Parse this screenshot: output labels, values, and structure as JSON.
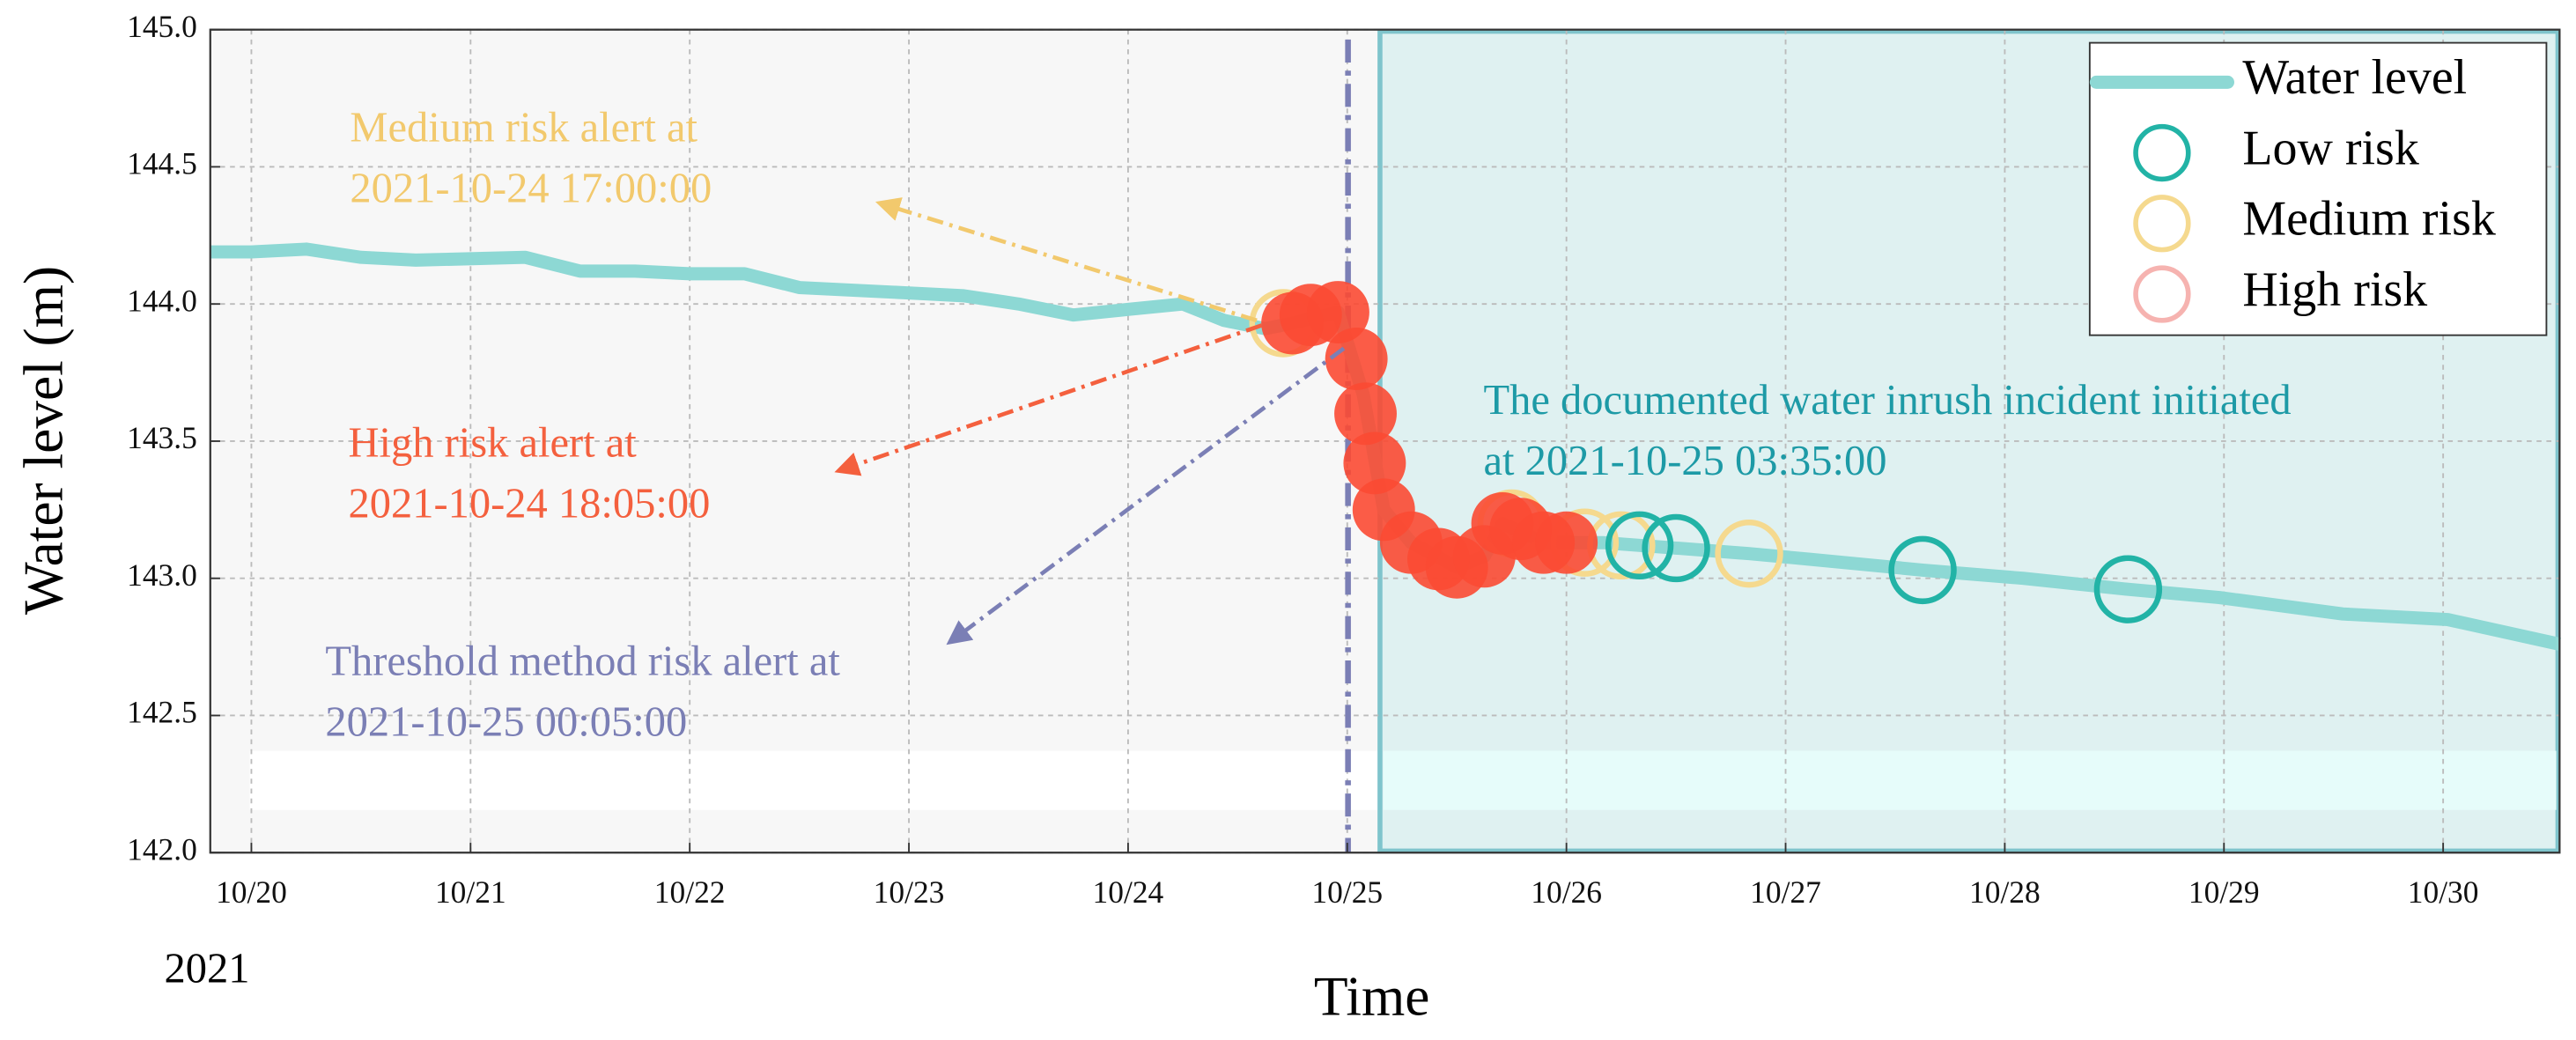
{
  "chart_data": {
    "type": "line",
    "xlabel": "Time",
    "ylabel": "Water level (m)",
    "x_year_label": "2021",
    "xlim": [
      "2021-10-19 19:30",
      "2021-10-30 12:45"
    ],
    "ylim": [
      142.0,
      145.0
    ],
    "xticks": [
      {
        "value": "2021-10-20 00:00",
        "label": "10/20"
      },
      {
        "value": "2021-10-21 00:00",
        "label": "10/21"
      },
      {
        "value": "2021-10-22 00:00",
        "label": "10/22"
      },
      {
        "value": "2021-10-23 00:00",
        "label": "10/23"
      },
      {
        "value": "2021-10-24 00:00",
        "label": "10/24"
      },
      {
        "value": "2021-10-25 00:00",
        "label": "10/25"
      },
      {
        "value": "2021-10-26 00:00",
        "label": "10/26"
      },
      {
        "value": "2021-10-27 00:00",
        "label": "10/27"
      },
      {
        "value": "2021-10-28 00:00",
        "label": "10/28"
      },
      {
        "value": "2021-10-29 00:00",
        "label": "10/29"
      },
      {
        "value": "2021-10-30 00:00",
        "label": "10/30"
      }
    ],
    "yticks": [
      {
        "value": 142.0,
        "label": "142.0"
      },
      {
        "value": 142.5,
        "label": "142.5"
      },
      {
        "value": 143.0,
        "label": "143.0"
      },
      {
        "value": 143.5,
        "label": "143.5"
      },
      {
        "value": 144.0,
        "label": "144.0"
      },
      {
        "value": 144.5,
        "label": "144.5"
      },
      {
        "value": 145.0,
        "label": "145.0"
      }
    ],
    "grid": true,
    "legend": "upper right",
    "threshold_time": "2021-10-25 00:05",
    "threshold_color": "#7b7fb5",
    "incident_time": "2021-10-25 03:35",
    "incident_color": "#dff1f1",
    "series": [
      {
        "name": "Water level",
        "color": "#8dd8d4",
        "style": "line",
        "x": [
          "2021-10-19 19:30",
          "2021-10-20 00:00",
          "2021-10-20 06:00",
          "2021-10-20 12:00",
          "2021-10-20 18:00",
          "2021-10-21 06:00",
          "2021-10-21 12:00",
          "2021-10-21 18:00",
          "2021-10-22 00:00",
          "2021-10-22 06:00",
          "2021-10-22 12:00",
          "2021-10-23 00:00",
          "2021-10-23 06:00",
          "2021-10-23 12:00",
          "2021-10-23 18:00",
          "2021-10-24 00:00",
          "2021-10-24 06:00",
          "2021-10-24 10:30",
          "2021-10-24 15:00",
          "2021-10-24 18:00",
          "2021-10-24 23:00",
          "2021-10-25 01:45",
          "2021-10-25 04:00",
          "2021-10-25 07:00",
          "2021-10-25 12:00",
          "2021-10-25 15:00",
          "2021-10-25 17:00",
          "2021-10-25 21:30",
          "2021-10-26 04:00",
          "2021-10-26 12:00",
          "2021-10-26 20:00",
          "2021-10-27 02:30",
          "2021-10-27 15:00",
          "2021-10-28 02:00",
          "2021-10-28 13:30",
          "2021-10-28 23:30",
          "2021-10-29 13:00",
          "2021-10-30 00:30",
          "2021-10-30 12:45"
        ],
        "values": [
          144.19,
          144.19,
          144.2,
          144.17,
          144.16,
          144.17,
          144.12,
          144.12,
          144.11,
          144.11,
          144.06,
          144.04,
          144.03,
          144.0,
          143.96,
          143.98,
          144.0,
          143.94,
          143.91,
          143.93,
          143.97,
          143.67,
          143.25,
          143.13,
          143.04,
          143.08,
          143.2,
          143.13,
          143.13,
          143.11,
          143.09,
          143.07,
          143.03,
          143.0,
          142.96,
          142.93,
          142.87,
          142.85,
          142.76
        ]
      },
      {
        "name": "Low risk",
        "color": "#22b3a6",
        "style": "ring",
        "x": [
          "2021-10-26 08:00",
          "2021-10-26 12:00",
          "2021-10-27 15:00",
          "2021-10-28 13:30"
        ],
        "values": [
          143.12,
          143.11,
          143.03,
          142.96
        ]
      },
      {
        "name": "Medium risk",
        "color": "#f5d98e",
        "style": "ring",
        "x": [
          "2021-10-24 17:00",
          "2021-10-25 18:00",
          "2021-10-26 02:00",
          "2021-10-26 06:00",
          "2021-10-26 20:00"
        ],
        "values": [
          143.93,
          143.2,
          143.13,
          143.12,
          143.09
        ]
      },
      {
        "name": "High risk",
        "color": "#fb4a33",
        "legend_color": "#f6b3b0",
        "style": "dot",
        "x": [
          "2021-10-24 18:00",
          "2021-10-24 20:00",
          "2021-10-24 23:00",
          "2021-10-25 01:00",
          "2021-10-25 02:00",
          "2021-10-25 03:00",
          "2021-10-25 04:00",
          "2021-10-25 07:00",
          "2021-10-25 10:00",
          "2021-10-25 12:00",
          "2021-10-25 15:00",
          "2021-10-25 17:00",
          "2021-10-25 19:00",
          "2021-10-25 21:30",
          "2021-10-26 00:00"
        ],
        "values": [
          143.93,
          143.96,
          143.97,
          143.8,
          143.6,
          143.42,
          143.25,
          143.13,
          143.07,
          143.04,
          143.08,
          143.2,
          143.18,
          143.13,
          143.13
        ]
      }
    ],
    "annotations": [
      {
        "lines": [
          "Medium risk alert at",
          " 2021-10-24 17:00:00"
        ],
        "color": "#f2c96d"
      },
      {
        "lines": [
          "High risk alert at",
          "2021-10-24 18:05:00"
        ],
        "color": "#f4603e"
      },
      {
        "lines": [
          "Threshold method risk alert at",
          " 2021-10-25 00:05:00"
        ],
        "color": "#7b7fb5"
      },
      {
        "lines": [
          "The documented water inrush incident initiated",
          "at 2021-10-25 03:35:00"
        ],
        "color": "#1d9aa6"
      }
    ]
  }
}
